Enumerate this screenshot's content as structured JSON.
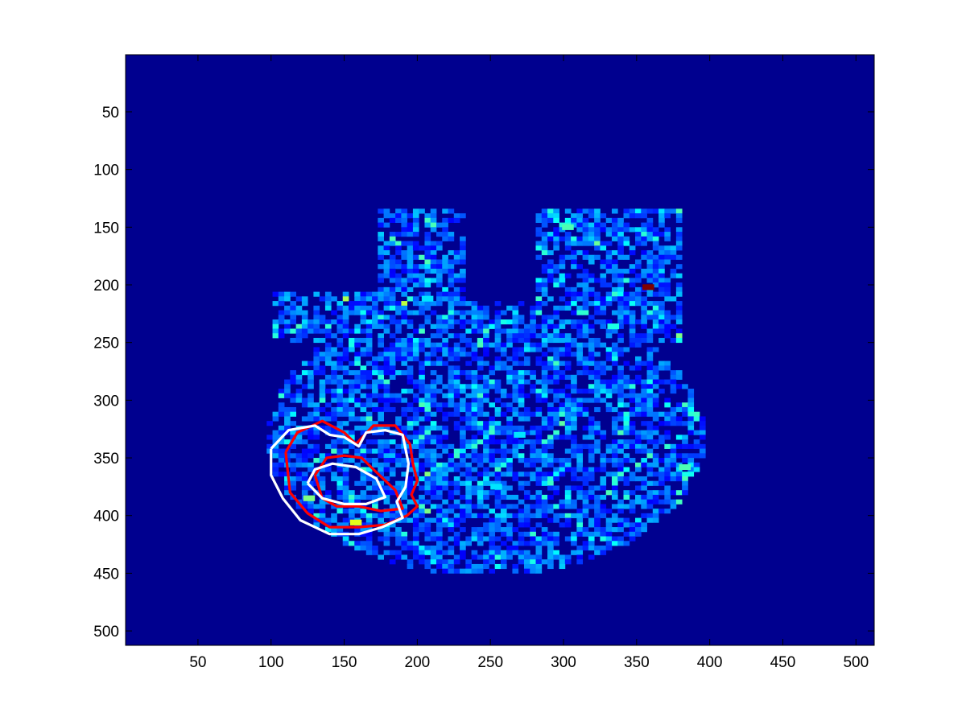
{
  "chart_data": {
    "type": "heatmap",
    "title": "",
    "xlabel": "",
    "ylabel": "",
    "xlim": [
      0.5,
      512.5
    ],
    "ylim": [
      512.5,
      0.5
    ],
    "y_axis_direction": "down",
    "grid": false,
    "colormap": "jet",
    "background_value_color": "#00008f",
    "x_ticks": [
      50,
      100,
      150,
      200,
      250,
      300,
      350,
      400,
      450,
      500
    ],
    "y_ticks": [
      50,
      100,
      150,
      200,
      250,
      300,
      350,
      400,
      450,
      500
    ],
    "x_tick_labels": [
      "50",
      "100",
      "150",
      "200",
      "250",
      "300",
      "350",
      "400",
      "450",
      "500"
    ],
    "y_tick_labels": [
      "50",
      "100",
      "150",
      "200",
      "250",
      "300",
      "350",
      "400",
      "450",
      "500"
    ],
    "region": {
      "x_range": [
        85,
        395
      ],
      "y_range": [
        130,
        448
      ]
    },
    "hotspots": [
      {
        "x": 303,
        "y": 150,
        "value": 0.45
      },
      {
        "x": 358,
        "y": 202,
        "value": 1.0
      },
      {
        "x": 207,
        "y": 212,
        "value": 0.35
      },
      {
        "x": 334,
        "y": 236,
        "value": 0.4
      },
      {
        "x": 126,
        "y": 385,
        "value": 0.5
      },
      {
        "x": 158,
        "y": 406,
        "value": 0.6
      },
      {
        "x": 383,
        "y": 358,
        "value": 0.45
      },
      {
        "x": 270,
        "y": 330,
        "value": 0.35
      },
      {
        "x": 254,
        "y": 375,
        "value": 0.35
      }
    ],
    "contours": [
      {
        "name": "red-outer",
        "color": "#ff0000",
        "points": [
          [
            110,
            345
          ],
          [
            118,
            328
          ],
          [
            135,
            318
          ],
          [
            150,
            328
          ],
          [
            158,
            338
          ],
          [
            164,
            330
          ],
          [
            170,
            322
          ],
          [
            185,
            322
          ],
          [
            195,
            338
          ],
          [
            197,
            355
          ],
          [
            200,
            370
          ],
          [
            196,
            382
          ],
          [
            200,
            392
          ],
          [
            193,
            400
          ],
          [
            178,
            408
          ],
          [
            160,
            410
          ],
          [
            140,
            410
          ],
          [
            125,
            398
          ],
          [
            113,
            380
          ],
          [
            110,
            345
          ]
        ]
      },
      {
        "name": "red-inner",
        "color": "#ff0000",
        "points": [
          [
            130,
            365
          ],
          [
            138,
            350
          ],
          [
            150,
            348
          ],
          [
            162,
            350
          ],
          [
            170,
            360
          ],
          [
            185,
            378
          ],
          [
            190,
            394
          ],
          [
            175,
            396
          ],
          [
            160,
            392
          ],
          [
            145,
            392
          ],
          [
            135,
            385
          ],
          [
            130,
            365
          ]
        ]
      },
      {
        "name": "white-outer",
        "color": "#ffffff",
        "points": [
          [
            100,
            342
          ],
          [
            112,
            326
          ],
          [
            130,
            322
          ],
          [
            140,
            330
          ],
          [
            150,
            332
          ],
          [
            160,
            340
          ],
          [
            165,
            328
          ],
          [
            178,
            326
          ],
          [
            190,
            330
          ],
          [
            194,
            355
          ],
          [
            192,
            375
          ],
          [
            186,
            388
          ],
          [
            190,
            402
          ],
          [
            176,
            410
          ],
          [
            160,
            416
          ],
          [
            140,
            416
          ],
          [
            120,
            404
          ],
          [
            108,
            385
          ],
          [
            100,
            365
          ],
          [
            100,
            342
          ]
        ]
      },
      {
        "name": "white-inner",
        "color": "#ffffff",
        "points": [
          [
            125,
            372
          ],
          [
            130,
            360
          ],
          [
            142,
            355
          ],
          [
            158,
            358
          ],
          [
            172,
            368
          ],
          [
            178,
            384
          ],
          [
            165,
            390
          ],
          [
            150,
            390
          ],
          [
            135,
            385
          ],
          [
            125,
            372
          ]
        ]
      }
    ]
  }
}
